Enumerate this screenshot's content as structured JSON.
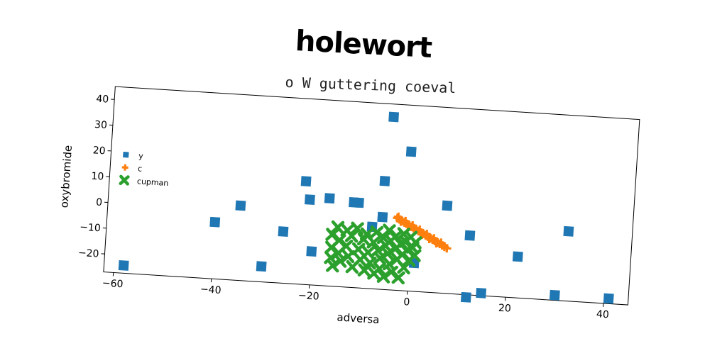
{
  "chart_data": {
    "type": "scatter",
    "title": "holewort",
    "subtitle": "o W guttering coeval",
    "xlabel": "adversa",
    "ylabel": "oxybromide",
    "xlim": [
      -62,
      45
    ],
    "ylim": [
      -27,
      45
    ],
    "xticks": [
      -60,
      -40,
      -20,
      0,
      20,
      40
    ],
    "yticks": [
      -20,
      -10,
      0,
      10,
      20,
      30,
      40
    ],
    "grid": false,
    "legend_position": "center-left",
    "series": [
      {
        "name": "y",
        "marker": "square",
        "color": "#1f77b4",
        "points": [
          [
            -58,
            -24
          ],
          [
            -40,
            -5
          ],
          [
            -35,
            2
          ],
          [
            -30,
            -21
          ],
          [
            -26,
            -7
          ],
          [
            -22,
            13
          ],
          [
            -21,
            6
          ],
          [
            -20,
            -14
          ],
          [
            -17,
            7
          ],
          [
            -12,
            6
          ],
          [
            -11,
            6
          ],
          [
            -8,
            -3
          ],
          [
            -6,
            15
          ],
          [
            -6,
            1
          ],
          [
            -5,
            40
          ],
          [
            -1,
            27
          ],
          [
            1,
            -16
          ],
          [
            7,
            7
          ],
          [
            12,
            -4
          ],
          [
            12,
            -28
          ],
          [
            15,
            -26
          ],
          [
            22,
            -11
          ],
          [
            30,
            -25
          ],
          [
            32,
            0
          ],
          [
            41,
            -25
          ]
        ]
      },
      {
        "name": "c",
        "marker": "plus",
        "color": "#ff7f0e",
        "points": [
          [
            -3,
            1
          ],
          [
            -2.5,
            0.5
          ],
          [
            -2,
            0
          ],
          [
            -1.5,
            -0.5
          ],
          [
            -1,
            -1
          ],
          [
            -0.5,
            -1.5
          ],
          [
            0,
            -2
          ],
          [
            0.5,
            -2.5
          ],
          [
            1,
            -3
          ],
          [
            1.5,
            -3.5
          ],
          [
            2,
            -4
          ],
          [
            2.5,
            -4.5
          ],
          [
            3,
            -5
          ],
          [
            3.5,
            -5.5
          ],
          [
            4,
            -6
          ],
          [
            4.5,
            -6.5
          ],
          [
            5,
            -7
          ],
          [
            5.5,
            -7.5
          ],
          [
            6,
            -8
          ],
          [
            6.5,
            -8.5
          ],
          [
            7,
            -9
          ],
          [
            7.5,
            -9.5
          ],
          [
            -2.8,
            1.5
          ],
          [
            -1.3,
            0
          ],
          [
            0.2,
            -1.5
          ],
          [
            1.7,
            -3
          ],
          [
            3.2,
            -4.5
          ],
          [
            4.7,
            -6
          ],
          [
            6.2,
            -7.5
          ],
          [
            -2.2,
            -0.3
          ],
          [
            -0.7,
            -1.8
          ],
          [
            0.8,
            -3.3
          ],
          [
            2.3,
            -4.8
          ],
          [
            3.8,
            -6.3
          ],
          [
            5.3,
            -7.8
          ]
        ]
      },
      {
        "name": "cupman",
        "marker": "x",
        "color": "#2ca02c",
        "points": [
          [
            -16,
            -7
          ],
          [
            -16,
            -12
          ],
          [
            -16,
            -16
          ],
          [
            -15.5,
            -19
          ],
          [
            -15,
            -4
          ],
          [
            -14.5,
            -9
          ],
          [
            -14.5,
            -14
          ],
          [
            -14,
            -17
          ],
          [
            -13,
            -5
          ],
          [
            -13,
            -11
          ],
          [
            -12.5,
            -15
          ],
          [
            -12,
            -7
          ],
          [
            -11.5,
            -19
          ],
          [
            -11,
            -4
          ],
          [
            -10.5,
            -12
          ],
          [
            -10,
            -16
          ],
          [
            -9.5,
            -8
          ],
          [
            -9,
            -20
          ],
          [
            -9,
            -6
          ],
          [
            -8.5,
            -13
          ],
          [
            -8,
            -17
          ],
          [
            -7.5,
            -9
          ],
          [
            -7,
            -21
          ],
          [
            -7,
            -5
          ],
          [
            -6.5,
            -12
          ],
          [
            -6,
            -15
          ],
          [
            -6,
            -19
          ],
          [
            -5.5,
            -7
          ],
          [
            -5,
            -10
          ],
          [
            -5,
            -22
          ],
          [
            -4.5,
            -4
          ],
          [
            -4.5,
            -13
          ],
          [
            -4,
            -17
          ],
          [
            -4,
            -8
          ],
          [
            -3.5,
            -20
          ],
          [
            -3,
            -11
          ],
          [
            -3,
            -6
          ],
          [
            -2.5,
            -15
          ],
          [
            -2,
            -9
          ],
          [
            -2,
            -22
          ],
          [
            -1.5,
            -5
          ],
          [
            -1.5,
            -13
          ],
          [
            -1,
            -18
          ],
          [
            -1,
            -8
          ],
          [
            -0.5,
            -11
          ],
          [
            0,
            -15
          ],
          [
            0,
            -6
          ],
          [
            0.5,
            -10
          ],
          [
            1,
            -13
          ],
          [
            1,
            -8
          ]
        ]
      }
    ]
  }
}
